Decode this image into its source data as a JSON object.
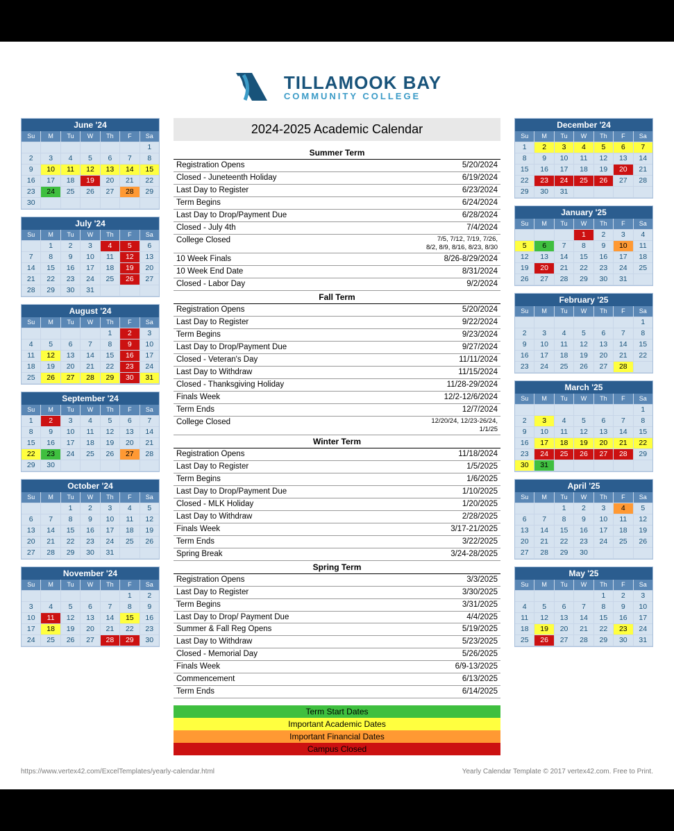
{
  "logo": {
    "main": "TILLAMOOK BAY",
    "sub": "COMMUNITY COLLEGE"
  },
  "title": "2024-2025 Academic Calendar",
  "colors": {
    "header": "#2b5d8f",
    "dow": "#5a87b5",
    "cell": "#d6e3f0",
    "green": "#3fbf3f",
    "yellow": "#ffff3f",
    "orange": "#ff9933",
    "red": "#cc1111"
  },
  "dow": [
    "Su",
    "M",
    "Tu",
    "W",
    "Th",
    "F",
    "Sa"
  ],
  "months_left": [
    {
      "title": "June '24",
      "start": 6,
      "days": 30,
      "hl": {
        "10": "yellow",
        "11": "yellow",
        "12": "yellow",
        "13": "yellow",
        "14": "yellow",
        "15": "yellow",
        "19": "red",
        "24": "green",
        "28": "orange"
      }
    },
    {
      "title": "July '24",
      "start": 1,
      "days": 31,
      "hl": {
        "4": "red",
        "5": "red",
        "12": "red",
        "19": "red",
        "26": "red"
      }
    },
    {
      "title": "August '24",
      "start": 4,
      "days": 31,
      "hl": {
        "2": "red",
        "9": "red",
        "12": "yellow",
        "16": "red",
        "23": "red",
        "26": "yellow",
        "27": "yellow",
        "28": "yellow",
        "29": "yellow",
        "30": "red",
        "31": "yellow"
      }
    },
    {
      "title": "September '24",
      "start": 0,
      "days": 30,
      "hl": {
        "2": "red",
        "22": "yellow",
        "23": "green",
        "27": "orange"
      }
    },
    {
      "title": "October '24",
      "start": 2,
      "days": 31,
      "hl": {}
    },
    {
      "title": "November '24",
      "start": 5,
      "days": 30,
      "hl": {
        "11": "red",
        "15": "yellow",
        "18": "yellow",
        "28": "red",
        "29": "red"
      }
    }
  ],
  "months_right": [
    {
      "title": "December '24",
      "start": 0,
      "days": 31,
      "hl": {
        "2": "yellow",
        "3": "yellow",
        "4": "yellow",
        "5": "yellow",
        "6": "yellow",
        "7": "yellow",
        "20": "red",
        "23": "red",
        "24": "red",
        "25": "red",
        "26": "red"
      }
    },
    {
      "title": "January '25",
      "start": 3,
      "days": 31,
      "hl": {
        "1": "red",
        "5": "yellow",
        "6": "green",
        "10": "orange",
        "20": "red"
      }
    },
    {
      "title": "February '25",
      "start": 6,
      "days": 28,
      "hl": {
        "28": "yellow"
      }
    },
    {
      "title": "March '25",
      "start": 6,
      "days": 31,
      "hl": {
        "3": "yellow",
        "17": "yellow",
        "18": "yellow",
        "19": "yellow",
        "20": "yellow",
        "21": "yellow",
        "22": "yellow",
        "24": "red",
        "25": "red",
        "26": "red",
        "27": "red",
        "28": "red",
        "30": "yellow",
        "31": "green"
      }
    },
    {
      "title": "April '25",
      "start": 2,
      "days": 30,
      "hl": {
        "4": "orange"
      }
    },
    {
      "title": "May '25",
      "start": 4,
      "days": 31,
      "hl": {
        "19": "yellow",
        "23": "yellow",
        "26": "red"
      }
    }
  ],
  "terms": [
    {
      "title": "Summer Term",
      "events": [
        {
          "name": "Registration Opens",
          "date": "5/20/2024"
        },
        {
          "name": "Closed - Juneteenth Holiday",
          "date": "6/19/2024"
        },
        {
          "name": "Last Day to Register",
          "date": "6/23/2024"
        },
        {
          "name": "Term Begins",
          "date": "6/24/2024"
        },
        {
          "name": "Last Day to Drop/Payment Due",
          "date": "6/28/2024"
        },
        {
          "name": "Closed - July 4th",
          "date": "7/4/2024"
        },
        {
          "name": "College Closed",
          "date": "7/5, 7/12, 7/19, 7/26,\n8/2, 8/9, 8/16, 8/23, 8/30"
        },
        {
          "name": "10 Week Finals",
          "date": "8/26-8/29/2024"
        },
        {
          "name": "10 Week End Date",
          "date": "8/31/2024"
        },
        {
          "name": "Closed - Labor Day",
          "date": "9/2/2024"
        }
      ]
    },
    {
      "title": "Fall Term",
      "events": [
        {
          "name": "Registration Opens",
          "date": "5/20/2024"
        },
        {
          "name": "Last Day to Register",
          "date": "9/22/2024"
        },
        {
          "name": "Term Begins",
          "date": "9/23/2024"
        },
        {
          "name": "Last Day to Drop/Payment Due",
          "date": "9/27/2024"
        },
        {
          "name": "Closed - Veteran's Day",
          "date": "11/11/2024"
        },
        {
          "name": "Last Day to Withdraw",
          "date": "11/15/2024"
        },
        {
          "name": "Closed - Thanksgiving Holiday",
          "date": "11/28-29/2024"
        },
        {
          "name": "Finals Week",
          "date": "12/2-12/6/2024"
        },
        {
          "name": "Term Ends",
          "date": "12/7/2024"
        },
        {
          "name": "College Closed",
          "date": "12/20/24, 12/23-26/24,\n1/1/25"
        }
      ]
    },
    {
      "title": "Winter Term",
      "events": [
        {
          "name": "Registration Opens",
          "date": "11/18/2024"
        },
        {
          "name": "Last Day to Register",
          "date": "1/5/2025"
        },
        {
          "name": "Term Begins",
          "date": "1/6/2025"
        },
        {
          "name": "Last Day to Drop/Payment Due",
          "date": "1/10/2025"
        },
        {
          "name": "Closed - MLK Holiday",
          "date": "1/20/2025"
        },
        {
          "name": "Last Day to Withdraw",
          "date": "2/28/2025"
        },
        {
          "name": "Finals Week",
          "date": "3/17-21/2025"
        },
        {
          "name": "Term Ends",
          "date": "3/22/2025"
        },
        {
          "name": "Spring Break",
          "date": "3/24-28/2025"
        }
      ]
    },
    {
      "title": "Spring Term",
      "events": [
        {
          "name": "Registration Opens",
          "date": "3/3/2025"
        },
        {
          "name": "Last Day to Register",
          "date": "3/30/2025"
        },
        {
          "name": "Term Begins",
          "date": "3/31/2025"
        },
        {
          "name": "Last Day to Drop/ Payment Due",
          "date": "4/4/2025"
        },
        {
          "name": "Summer & Fall Reg Opens",
          "date": "5/19/2025"
        },
        {
          "name": "Last Day to Withdraw",
          "date": "5/23/2025"
        },
        {
          "name": "Closed - Memorial Day",
          "date": "5/26/2025"
        },
        {
          "name": "Finals Week",
          "date": "6/9-13/2025"
        },
        {
          "name": "Commencement",
          "date": "6/13/2025"
        },
        {
          "name": "Term Ends",
          "date": "6/14/2025"
        }
      ]
    }
  ],
  "legend": [
    {
      "label": "Term Start Dates",
      "cls": "lg-green"
    },
    {
      "label": "Important Academic Dates",
      "cls": "lg-yellow"
    },
    {
      "label": "Important Financial Dates",
      "cls": "lg-orange"
    },
    {
      "label": "Campus Closed",
      "cls": "lg-red"
    }
  ],
  "footer": {
    "left": "https://www.vertex42.com/ExcelTemplates/yearly-calendar.html",
    "right": "Yearly Calendar Template © 2017 vertex42.com. Free to Print."
  }
}
